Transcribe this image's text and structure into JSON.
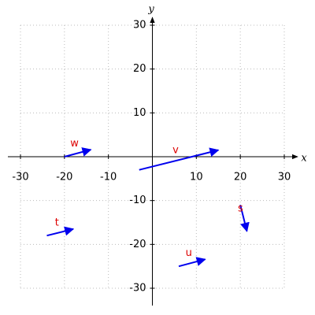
{
  "chart_data": {
    "type": "vector",
    "x_label": "x",
    "y_label": "y",
    "xlim": [
      -30,
      30
    ],
    "ylim": [
      -30,
      30
    ],
    "xticks": [
      -30,
      -20,
      -10,
      10,
      20,
      30
    ],
    "yticks": [
      -30,
      -20,
      -10,
      10,
      20,
      30
    ],
    "grid": true,
    "color": "#0000ee",
    "label_color": "#dd0000",
    "vectors": [
      {
        "name": "w",
        "x": -20,
        "y": 0,
        "dx": 6,
        "dy": 1.6
      },
      {
        "name": "v",
        "x": -3,
        "y": -3,
        "dx": 18,
        "dy": 4.5
      },
      {
        "name": "t",
        "x": -24,
        "y": -18,
        "dx": 6,
        "dy": 1.5
      },
      {
        "name": "s",
        "x": 20,
        "y": -11,
        "dx": 1.5,
        "dy": -6
      },
      {
        "name": "u",
        "x": 6,
        "y": -25,
        "dx": 6,
        "dy": 1.6
      }
    ]
  }
}
